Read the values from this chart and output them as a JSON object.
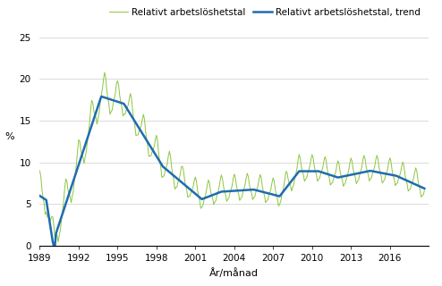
{
  "ylabel": "%",
  "xlabel": "År/månad",
  "legend_line1": "Relativt arbetslöshetstal",
  "legend_line2": "Relativt arbetslöshetstal, trend",
  "ylim": [
    0,
    25
  ],
  "yticks": [
    0,
    5,
    10,
    15,
    20,
    25
  ],
  "xticks": [
    1989,
    1992,
    1995,
    1998,
    2001,
    2004,
    2007,
    2010,
    2013,
    2016
  ],
  "color_main": "#8dc63f",
  "color_trend": "#1f6cb0",
  "start_year": 1989,
  "start_month": 1,
  "end_year": 2018,
  "end_month": 9
}
